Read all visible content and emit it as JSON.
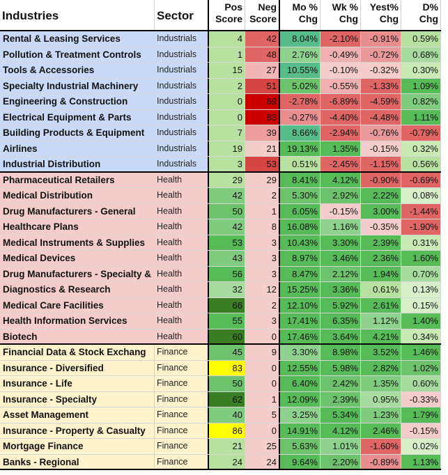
{
  "header": {
    "industries": "Industries",
    "sector": "Sector",
    "pos_score": "Pos Score",
    "neg_score": "Neg Score",
    "mo_chg": "Mo % Chg",
    "wk_chg": "Wk % Chg",
    "yest_chg": "Yest% Chg",
    "d_chg": "D% Chg"
  },
  "colors": {
    "industrials_bg": "#c9daf8",
    "health_bg": "#f4cccc",
    "finance_bg": "#fff2cc"
  },
  "groups": [
    {
      "sector_key": "Industrials",
      "rows": [
        {
          "industry": "Rental & Leasing Services",
          "sector": "Industrials",
          "pos": "4",
          "neg": "42",
          "mo": "8.04%",
          "wk": "-2.10%",
          "yest": "-0.91%",
          "d": "0.59%",
          "pos_c": "#b7e1a1",
          "neg_c": "#e06666",
          "mo_c": "#57bb8a",
          "wk_c": "#e06666",
          "yest_c": "#e98e8e",
          "d_c": "#b7e1a1"
        },
        {
          "industry": "Pollution & Treatment Controls",
          "sector": "Industrials",
          "pos": "1",
          "neg": "48",
          "mo": "2.76%",
          "wk": "-0.49%",
          "yest": "-0.72%",
          "d": "0.68%",
          "pos_c": "#b7e1a1",
          "neg_c": "#e06666",
          "mo_c": "#8fd18f",
          "wk_c": "#f0b0b0",
          "yest_c": "#ea9999",
          "d_c": "#a8dba0"
        },
        {
          "industry": "Tools & Accessories",
          "sector": "Industrials",
          "pos": "15",
          "neg": "27",
          "mo": "10.55%",
          "wk": "-0.10%",
          "yest": "-0.32%",
          "d": "0.30%",
          "pos_c": "#b7e1a1",
          "neg_c": "#f2b5b5",
          "mo_c": "#57bb8a",
          "wk_c": "#f4cccc",
          "yest_c": "#f4cccc",
          "d_c": "#c9e9b5"
        },
        {
          "industry": "Specialty Industrial Machinery",
          "sector": "Industrials",
          "pos": "2",
          "neg": "51",
          "mo": "5.02%",
          "wk": "-0.55%",
          "yest": "-1.33%",
          "d": "1.09%",
          "pos_c": "#b7e1a1",
          "neg_c": "#d54545",
          "mo_c": "#6cc36c",
          "wk_c": "#f0b0b0",
          "yest_c": "#e06666",
          "d_c": "#57bb57"
        },
        {
          "industry": "Engineering & Construction",
          "sector": "Industrials",
          "pos": "0",
          "neg": "69",
          "mo": "-2.78%",
          "wk": "-6.89%",
          "yest": "-4.59%",
          "d": "0.82%",
          "pos_c": "#b7e1a1",
          "neg_c": "#cc0000",
          "mo_c": "#e06666",
          "wk_c": "#e06666",
          "yest_c": "#e06666",
          "d_c": "#7fcb7f"
        },
        {
          "industry": "Electrical Equipment & Parts",
          "sector": "Industrials",
          "pos": "0",
          "neg": "83",
          "mo": "-0.27%",
          "wk": "-4.40%",
          "yest": "-4.48%",
          "d": "1.11%",
          "pos_c": "#b7e1a1",
          "neg_c": "#cc0000",
          "mo_c": "#e98e8e",
          "wk_c": "#e06666",
          "yest_c": "#e06666",
          "d_c": "#57bb57"
        },
        {
          "industry": "Building Products & Equipment",
          "sector": "Industrials",
          "pos": "7",
          "neg": "39",
          "mo": "8.66%",
          "wk": "-2.94%",
          "yest": "-0.76%",
          "d": "-0.79%",
          "pos_c": "#b7e1a1",
          "neg_c": "#ee9d9d",
          "mo_c": "#57bb8a",
          "wk_c": "#e06666",
          "yest_c": "#ea9999",
          "d_c": "#e06666"
        },
        {
          "industry": "Airlines",
          "sector": "Industrials",
          "pos": "19",
          "neg": "21",
          "mo": "19.13%",
          "wk": "1.35%",
          "yest": "-0.15%",
          "d": "0.32%",
          "pos_c": "#b7e1a1",
          "neg_c": "#f4cccc",
          "mo_c": "#57bb57",
          "wk_c": "#57bb57",
          "yest_c": "#f4cccc",
          "d_c": "#c9e9b5"
        },
        {
          "industry": "Industrial Distribution",
          "sector": "Industrials",
          "pos": "3",
          "neg": "53",
          "mo": "0.51%",
          "wk": "-2.45%",
          "yest": "-1.15%",
          "d": "0.56%",
          "pos_c": "#b7e1a1",
          "neg_c": "#d54545",
          "mo_c": "#b7e1a1",
          "wk_c": "#e06666",
          "yest_c": "#e06666",
          "d_c": "#b7e1a1"
        }
      ]
    },
    {
      "sector_key": "Health",
      "rows": [
        {
          "industry": "Pharmaceutical Retailers",
          "sector": "Health",
          "pos": "29",
          "neg": "29",
          "mo": "8.41%",
          "wk": "4.12%",
          "yest": "-0.90%",
          "d": "-0.69%",
          "pos_c": "#b7e1a1",
          "neg_c": "#f4cccc",
          "mo_c": "#57bb57",
          "wk_c": "#57bb57",
          "yest_c": "#e06666",
          "d_c": "#e06666"
        },
        {
          "industry": "Medical Distribution",
          "sector": "Health",
          "pos": "42",
          "neg": "2",
          "mo": "5.30%",
          "wk": "2.92%",
          "yest": "2.22%",
          "d": "0.08%",
          "pos_c": "#7fcb7f",
          "neg_c": "#f4cccc",
          "mo_c": "#6cc36c",
          "wk_c": "#6cc36c",
          "yest_c": "#57bb57",
          "d_c": "#d9efc9"
        },
        {
          "industry": "Drug Manufacturers - General",
          "sector": "Health",
          "pos": "50",
          "neg": "1",
          "mo": "6.05%",
          "wk": "-0.15%",
          "yest": "3.00%",
          "d": "-1.44%",
          "pos_c": "#6cc36c",
          "neg_c": "#f4cccc",
          "mo_c": "#57bb57",
          "wk_c": "#f4cccc",
          "yest_c": "#57bb57",
          "d_c": "#e06666"
        },
        {
          "industry": "Healthcare Plans",
          "sector": "Health",
          "pos": "42",
          "neg": "8",
          "mo": "16.08%",
          "wk": "1.16%",
          "yest": "-0.35%",
          "d": "-1.90%",
          "pos_c": "#7fcb7f",
          "neg_c": "#f4cccc",
          "mo_c": "#57bb57",
          "wk_c": "#8fd18f",
          "yest_c": "#f4cccc",
          "d_c": "#e06666"
        },
        {
          "industry": "Medical Instruments & Supplies",
          "sector": "Health",
          "pos": "53",
          "neg": "3",
          "mo": "10.43%",
          "wk": "3.30%",
          "yest": "2.39%",
          "d": "0.31%",
          "pos_c": "#57bb57",
          "neg_c": "#f4cccc",
          "mo_c": "#57bb57",
          "wk_c": "#57bb57",
          "yest_c": "#57bb57",
          "d_c": "#c9e9b5"
        },
        {
          "industry": "Medical Devices",
          "sector": "Health",
          "pos": "43",
          "neg": "3",
          "mo": "8.97%",
          "wk": "3.46%",
          "yest": "2.36%",
          "d": "1.60%",
          "pos_c": "#7fcb7f",
          "neg_c": "#f4cccc",
          "mo_c": "#57bb57",
          "wk_c": "#57bb57",
          "yest_c": "#57bb57",
          "d_c": "#57bb57"
        },
        {
          "industry": "Drug Manufacturers - Specialty &",
          "sector": "Health",
          "pos": "56",
          "neg": "3",
          "mo": "8.47%",
          "wk": "2.12%",
          "yest": "1.94%",
          "d": "0.70%",
          "pos_c": "#57bb57",
          "neg_c": "#f4cccc",
          "mo_c": "#57bb57",
          "wk_c": "#6cc36c",
          "yest_c": "#57bb57",
          "d_c": "#a8dba0"
        },
        {
          "industry": "Diagnostics & Research",
          "sector": "Health",
          "pos": "32",
          "neg": "12",
          "mo": "15.25%",
          "wk": "3.36%",
          "yest": "0.61%",
          "d": "0.13%",
          "pos_c": "#a8dba0",
          "neg_c": "#f4cccc",
          "mo_c": "#57bb57",
          "wk_c": "#57bb57",
          "yest_c": "#b7e1a1",
          "d_c": "#d9efc9"
        },
        {
          "industry": "Medical Care Facilities",
          "sector": "Health",
          "pos": "66",
          "neg": "2",
          "mo": "12.10%",
          "wk": "5.92%",
          "yest": "2.61%",
          "d": "0.15%",
          "pos_c": "#3a7d22",
          "neg_c": "#f4cccc",
          "mo_c": "#57bb57",
          "wk_c": "#57bb57",
          "yest_c": "#57bb57",
          "d_c": "#d9efc9"
        },
        {
          "industry": "Health Information Services",
          "sector": "Health",
          "pos": "55",
          "neg": "3",
          "mo": "17.41%",
          "wk": "6.35%",
          "yest": "1.12%",
          "d": "1.40%",
          "pos_c": "#57bb57",
          "neg_c": "#f4cccc",
          "mo_c": "#57bb57",
          "wk_c": "#57bb57",
          "yest_c": "#8fd18f",
          "d_c": "#57bb57"
        },
        {
          "industry": "Biotech",
          "sector": "Health",
          "pos": "60",
          "neg": "0",
          "mo": "17.46%",
          "wk": "3.64%",
          "yest": "4.21%",
          "d": "0.34%",
          "pos_c": "#3a7d22",
          "neg_c": "#f4cccc",
          "mo_c": "#57bb57",
          "wk_c": "#57bb57",
          "yest_c": "#57bb57",
          "d_c": "#c9e9b5"
        }
      ]
    },
    {
      "sector_key": "Finance",
      "rows": [
        {
          "industry": "Financial Data & Stock Exchang",
          "sector": "Finance",
          "pos": "45",
          "neg": "9",
          "mo": "3.30%",
          "wk": "8.98%",
          "yest": "3.52%",
          "d": "1.46%",
          "pos_c": "#6cc36c",
          "neg_c": "#f4cccc",
          "mo_c": "#8fd18f",
          "wk_c": "#57bb57",
          "yest_c": "#57bb57",
          "d_c": "#57bb57"
        },
        {
          "industry": "Insurance - Diversified",
          "sector": "Finance",
          "pos": "83",
          "neg": "0",
          "mo": "12.55%",
          "wk": "5.98%",
          "yest": "2.82%",
          "d": "1.02%",
          "pos_c": "#ffff00",
          "neg_c": "#f4cccc",
          "mo_c": "#57bb57",
          "wk_c": "#57bb57",
          "yest_c": "#57bb57",
          "d_c": "#6cc36c"
        },
        {
          "industry": "Insurance - Life",
          "sector": "Finance",
          "pos": "50",
          "neg": "0",
          "mo": "6.40%",
          "wk": "2.42%",
          "yest": "1.35%",
          "d": "0.60%",
          "pos_c": "#6cc36c",
          "neg_c": "#f4cccc",
          "mo_c": "#57bb57",
          "wk_c": "#6cc36c",
          "yest_c": "#7fcb7f",
          "d_c": "#a8dba0"
        },
        {
          "industry": "Insurance - Specialty",
          "sector": "Finance",
          "pos": "62",
          "neg": "1",
          "mo": "12.09%",
          "wk": "2.39%",
          "yest": "0.95%",
          "d": "-0.33%",
          "pos_c": "#3a7d22",
          "neg_c": "#f4cccc",
          "mo_c": "#57bb57",
          "wk_c": "#6cc36c",
          "yest_c": "#a8dba0",
          "d_c": "#f4cccc"
        },
        {
          "industry": "Asset Management",
          "sector": "Finance",
          "pos": "40",
          "neg": "5",
          "mo": "3.25%",
          "wk": "5.34%",
          "yest": "1.23%",
          "d": "1.79%",
          "pos_c": "#7fcb7f",
          "neg_c": "#f4cccc",
          "mo_c": "#8fd18f",
          "wk_c": "#57bb57",
          "yest_c": "#7fcb7f",
          "d_c": "#57bb57"
        },
        {
          "industry": "Insurance - Property & Casualty",
          "sector": "Finance",
          "pos": "86",
          "neg": "0",
          "mo": "14.91%",
          "wk": "4.12%",
          "yest": "2.46%",
          "d": "-0.15%",
          "pos_c": "#ffff00",
          "neg_c": "#f4cccc",
          "mo_c": "#57bb57",
          "wk_c": "#57bb57",
          "yest_c": "#57bb57",
          "d_c": "#f4cccc"
        },
        {
          "industry": "Mortgage Finance",
          "sector": "Finance",
          "pos": "21",
          "neg": "25",
          "mo": "5.63%",
          "wk": "1.01%",
          "yest": "-1.60%",
          "d": "0.02%",
          "pos_c": "#b7e1a1",
          "neg_c": "#f4cccc",
          "mo_c": "#6cc36c",
          "wk_c": "#8fd18f",
          "yest_c": "#e06666",
          "d_c": "#d9efc9"
        },
        {
          "industry": "Banks - Regional",
          "sector": "Finance",
          "pos": "24",
          "neg": "24",
          "mo": "9.64%",
          "wk": "2.20%",
          "yest": "-0.89%",
          "d": "1.13%",
          "pos_c": "#b7e1a1",
          "neg_c": "#f4cccc",
          "mo_c": "#57bb57",
          "wk_c": "#6cc36c",
          "yest_c": "#e98e8e",
          "d_c": "#57bb57"
        }
      ]
    }
  ]
}
